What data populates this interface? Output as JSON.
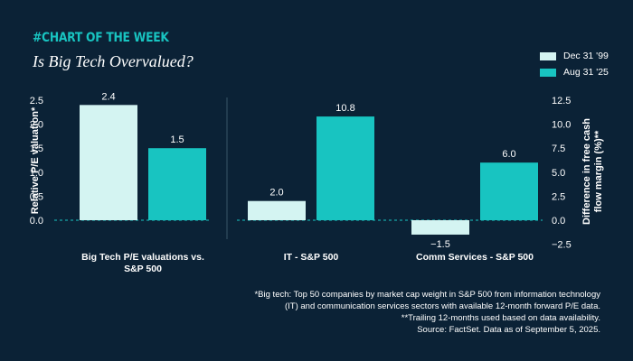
{
  "header": {
    "hashtag": "#CHART OF THE WEEK",
    "title": "Is Big Tech Overvalued?"
  },
  "colors": {
    "background": "#0b2236",
    "series_dec": "#d4f4f2",
    "series_aug": "#18c4c1",
    "accent": "#18c4c1"
  },
  "legend": [
    {
      "label": "Dec 31 '99",
      "color": "#d4f4f2"
    },
    {
      "label": "Aug 31 '25",
      "color": "#18c4c1"
    }
  ],
  "chart_data": {
    "type": "bar",
    "series": [
      {
        "name": "Dec 31 '99"
      },
      {
        "name": "Aug 31 '25"
      }
    ],
    "panels": [
      {
        "axis": "left",
        "ylabel": "Relative P/E valuation*",
        "ylim": [
          -0.5,
          2.5
        ],
        "ticks": [
          "0.0",
          "0.5",
          "1.0",
          "1.5",
          "2.0",
          "2.5"
        ],
        "tick_values": [
          0,
          0.5,
          1.0,
          1.5,
          2.0,
          2.5
        ],
        "categories": [
          {
            "label_lines": [
              "Big Tech P/E valuations vs.",
              "S&P 500"
            ],
            "values": [
              2.4,
              1.5
            ],
            "labels": [
              "2.4",
              "1.5"
            ]
          }
        ]
      },
      {
        "axis": "right",
        "ylabel_lines": [
          "Difference in free cash",
          "flow margin (%)**"
        ],
        "ylim": [
          -2.5,
          12.5
        ],
        "ticks": [
          "−2.5",
          "0.0",
          "2.5",
          "5.0",
          "7.5",
          "10.0",
          "12.5"
        ],
        "tick_values": [
          -2.5,
          0,
          2.5,
          5.0,
          7.5,
          10.0,
          12.5
        ],
        "categories": [
          {
            "label_lines": [
              "IT - S&P 500"
            ],
            "values": [
              2.0,
              10.8
            ],
            "labels": [
              "2.0",
              "10.8"
            ]
          },
          {
            "label_lines": [
              "Comm Services - S&P 500"
            ],
            "values": [
              -1.5,
              6.0
            ],
            "labels": [
              "−1.5",
              "6.0"
            ]
          }
        ]
      }
    ]
  },
  "footnotes": [
    "*Big tech: Top 50 companies by market cap weight in S&P 500 from information technology",
    "(IT) and communication services sectors with available 12-month forward P/E data.",
    "**Trailing 12-months used based on data availability.",
    "Source: FactSet. Data as of September 5, 2025."
  ]
}
